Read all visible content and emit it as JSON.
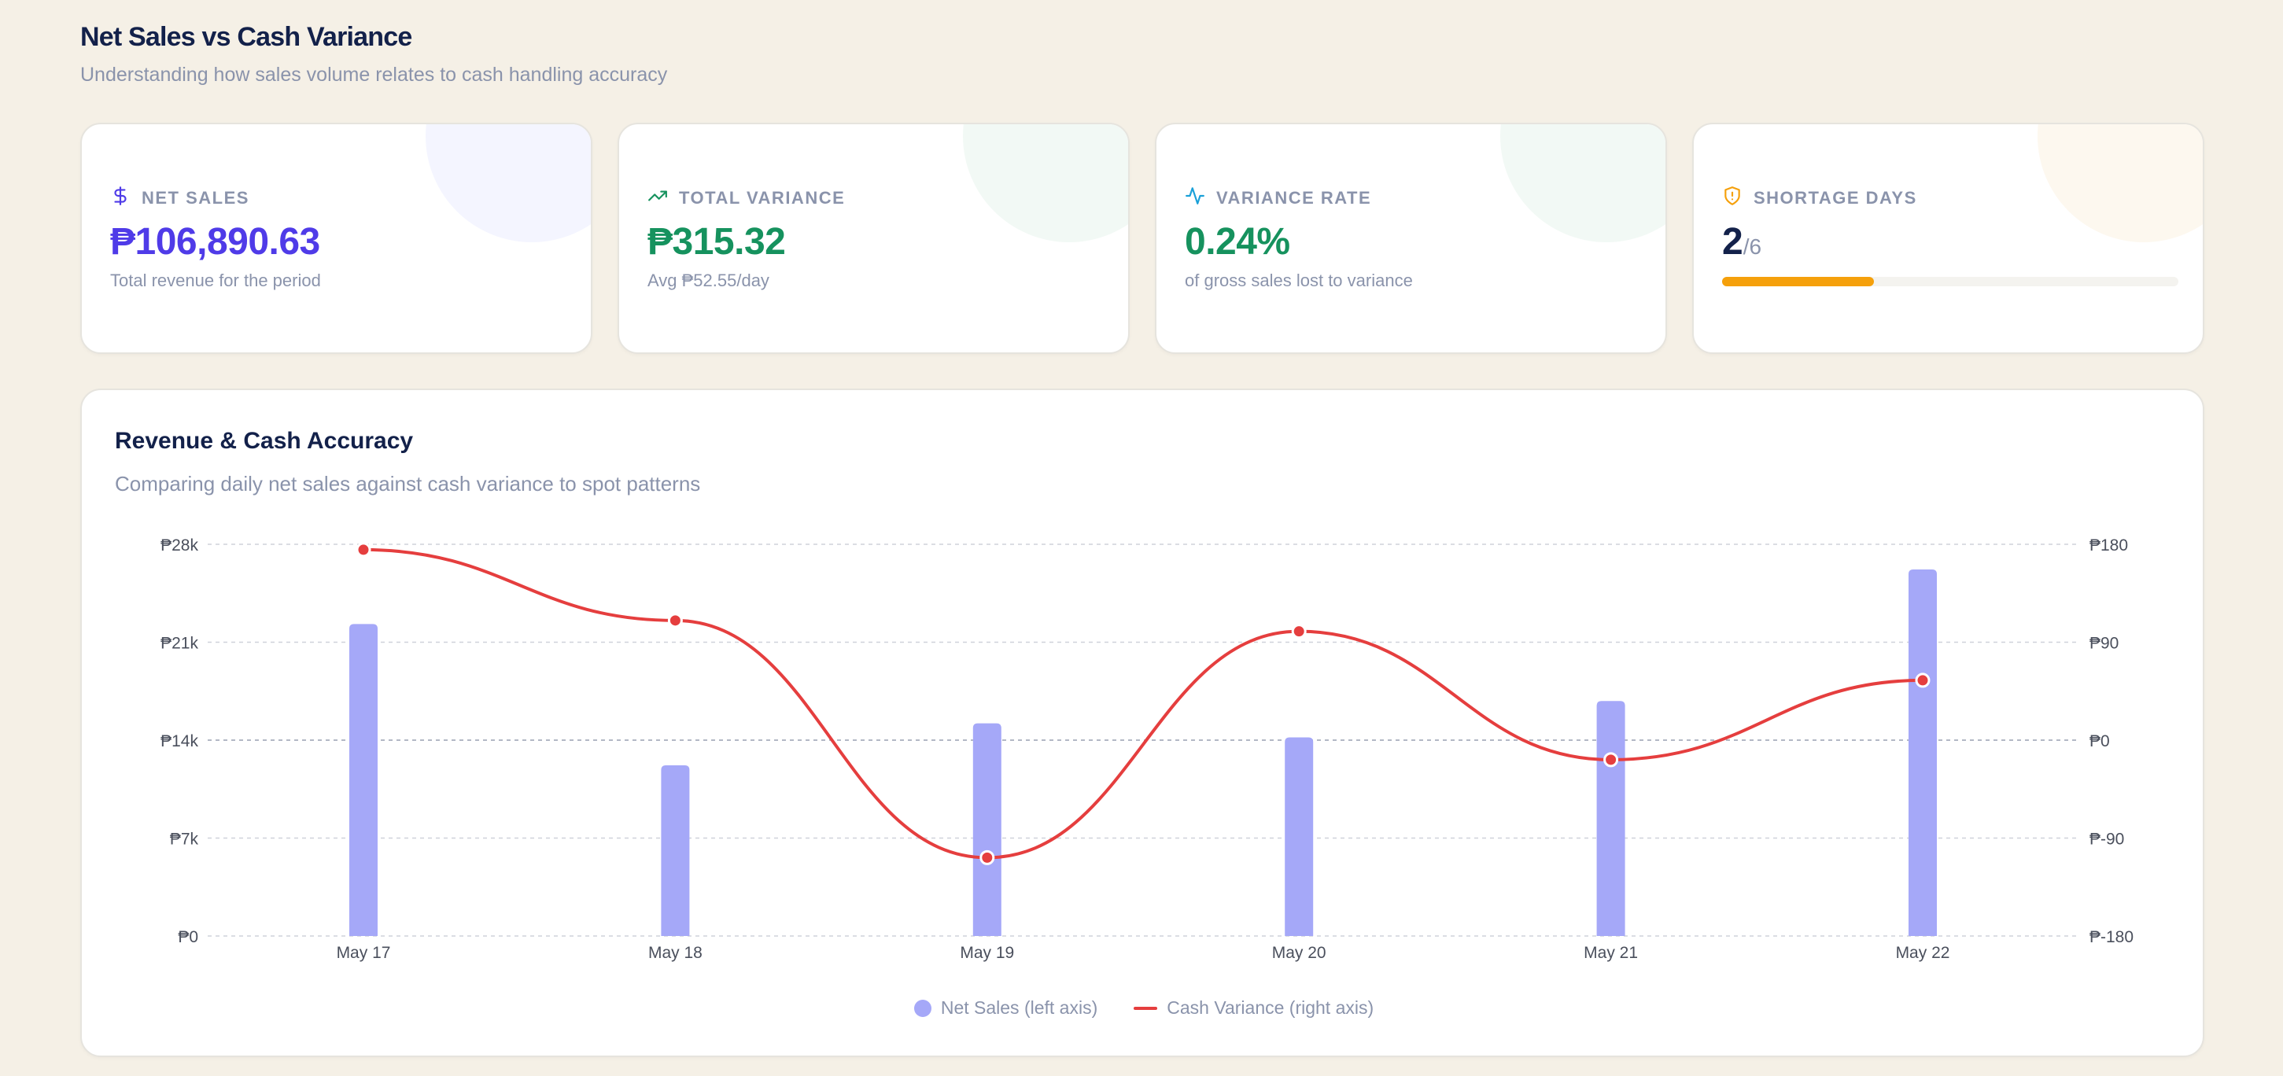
{
  "header": {
    "title": "Net Sales vs Cash Variance",
    "subtitle": "Understanding how sales volume relates to cash handling accuracy"
  },
  "cards": {
    "net_sales": {
      "label": "NET SALES",
      "value": "₱106,890.63",
      "sub": "Total revenue for the period",
      "icon": "dollar-icon",
      "color": "#4f3be8"
    },
    "total_variance": {
      "label": "TOTAL VARIANCE",
      "value": "₱315.32",
      "sub": "Avg ₱52.55/day",
      "icon": "trending-up-icon",
      "color": "#16925e"
    },
    "variance_rate": {
      "label": "VARIANCE RATE",
      "value": "0.24%",
      "sub": "of gross sales lost to variance",
      "icon": "activity-icon",
      "color": "#16925e"
    },
    "shortage_days": {
      "label": "SHORTAGE DAYS",
      "value": "2",
      "total": "/6",
      "progress_fraction": 0.3333,
      "icon": "shield-alert-icon",
      "color": "#f5a00b"
    }
  },
  "chart_card": {
    "title": "Revenue & Cash Accuracy",
    "subtitle": "Comparing daily net sales against cash variance to spot patterns"
  },
  "chart_data": {
    "type": "bar",
    "categories": [
      "May 17",
      "May 18",
      "May 19",
      "May 20",
      "May 21",
      "May 22"
    ],
    "series": [
      {
        "name": "Net Sales (left axis)",
        "type": "bar",
        "axis": "left",
        "color": "#a5a8f8",
        "values": [
          22300,
          12200,
          15200,
          14200,
          16800,
          26200
        ]
      },
      {
        "name": "Cash Variance (right axis)",
        "type": "line",
        "axis": "right",
        "color": "#e53e3e",
        "values": [
          175,
          110,
          -108,
          100,
          -18,
          55
        ]
      }
    ],
    "left_axis": {
      "ylim": [
        0,
        28000
      ],
      "ticks": [
        0,
        7000,
        14000,
        21000,
        28000
      ],
      "tick_labels": [
        "₱0",
        "₱7k",
        "₱14k",
        "₱21k",
        "₱28k"
      ]
    },
    "right_axis": {
      "ylim": [
        -180,
        180
      ],
      "ticks": [
        -180,
        -90,
        0,
        90,
        180
      ],
      "tick_labels": [
        "₱-180",
        "₱-90",
        "₱0",
        "₱90",
        "₱180"
      ]
    },
    "grid": true,
    "legend_position": "bottom-center"
  }
}
